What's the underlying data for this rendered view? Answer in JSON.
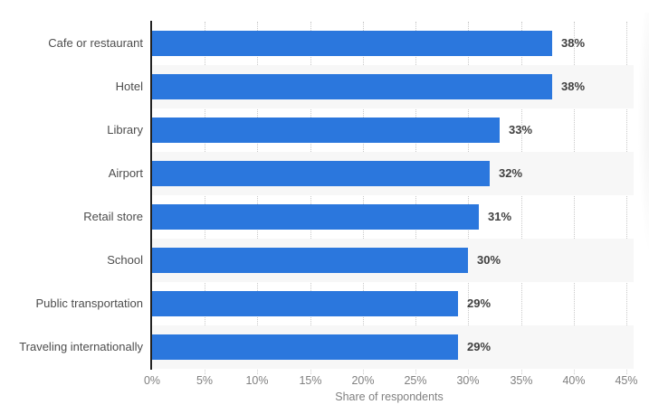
{
  "chart_data": {
    "type": "bar",
    "orientation": "horizontal",
    "categories": [
      "Cafe or restaurant",
      "Hotel",
      "Library",
      "Airport",
      "Retail store",
      "School",
      "Public transportation",
      "Traveling internationally"
    ],
    "values": [
      38,
      38,
      33,
      32,
      31,
      30,
      29,
      29
    ],
    "value_labels": [
      "38%",
      "38%",
      "33%",
      "32%",
      "31%",
      "30%",
      "29%",
      "29%"
    ],
    "xlabel": "Share of respondents",
    "xticks": [
      "0%",
      "5%",
      "10%",
      "15%",
      "20%",
      "25%",
      "30%",
      "35%",
      "40%",
      "45%"
    ],
    "xlim": [
      0,
      45
    ],
    "grid": "vertical dotted every 5%",
    "legend": "none",
    "colors": {
      "bar": "#2b77dd",
      "row_stripe": "#f7f7f7",
      "gridline": "#c9c9c9",
      "axis_line": "#222222",
      "category_text": "#4d4d4d",
      "value_text": "#404040",
      "tick_text": "#808080"
    }
  }
}
